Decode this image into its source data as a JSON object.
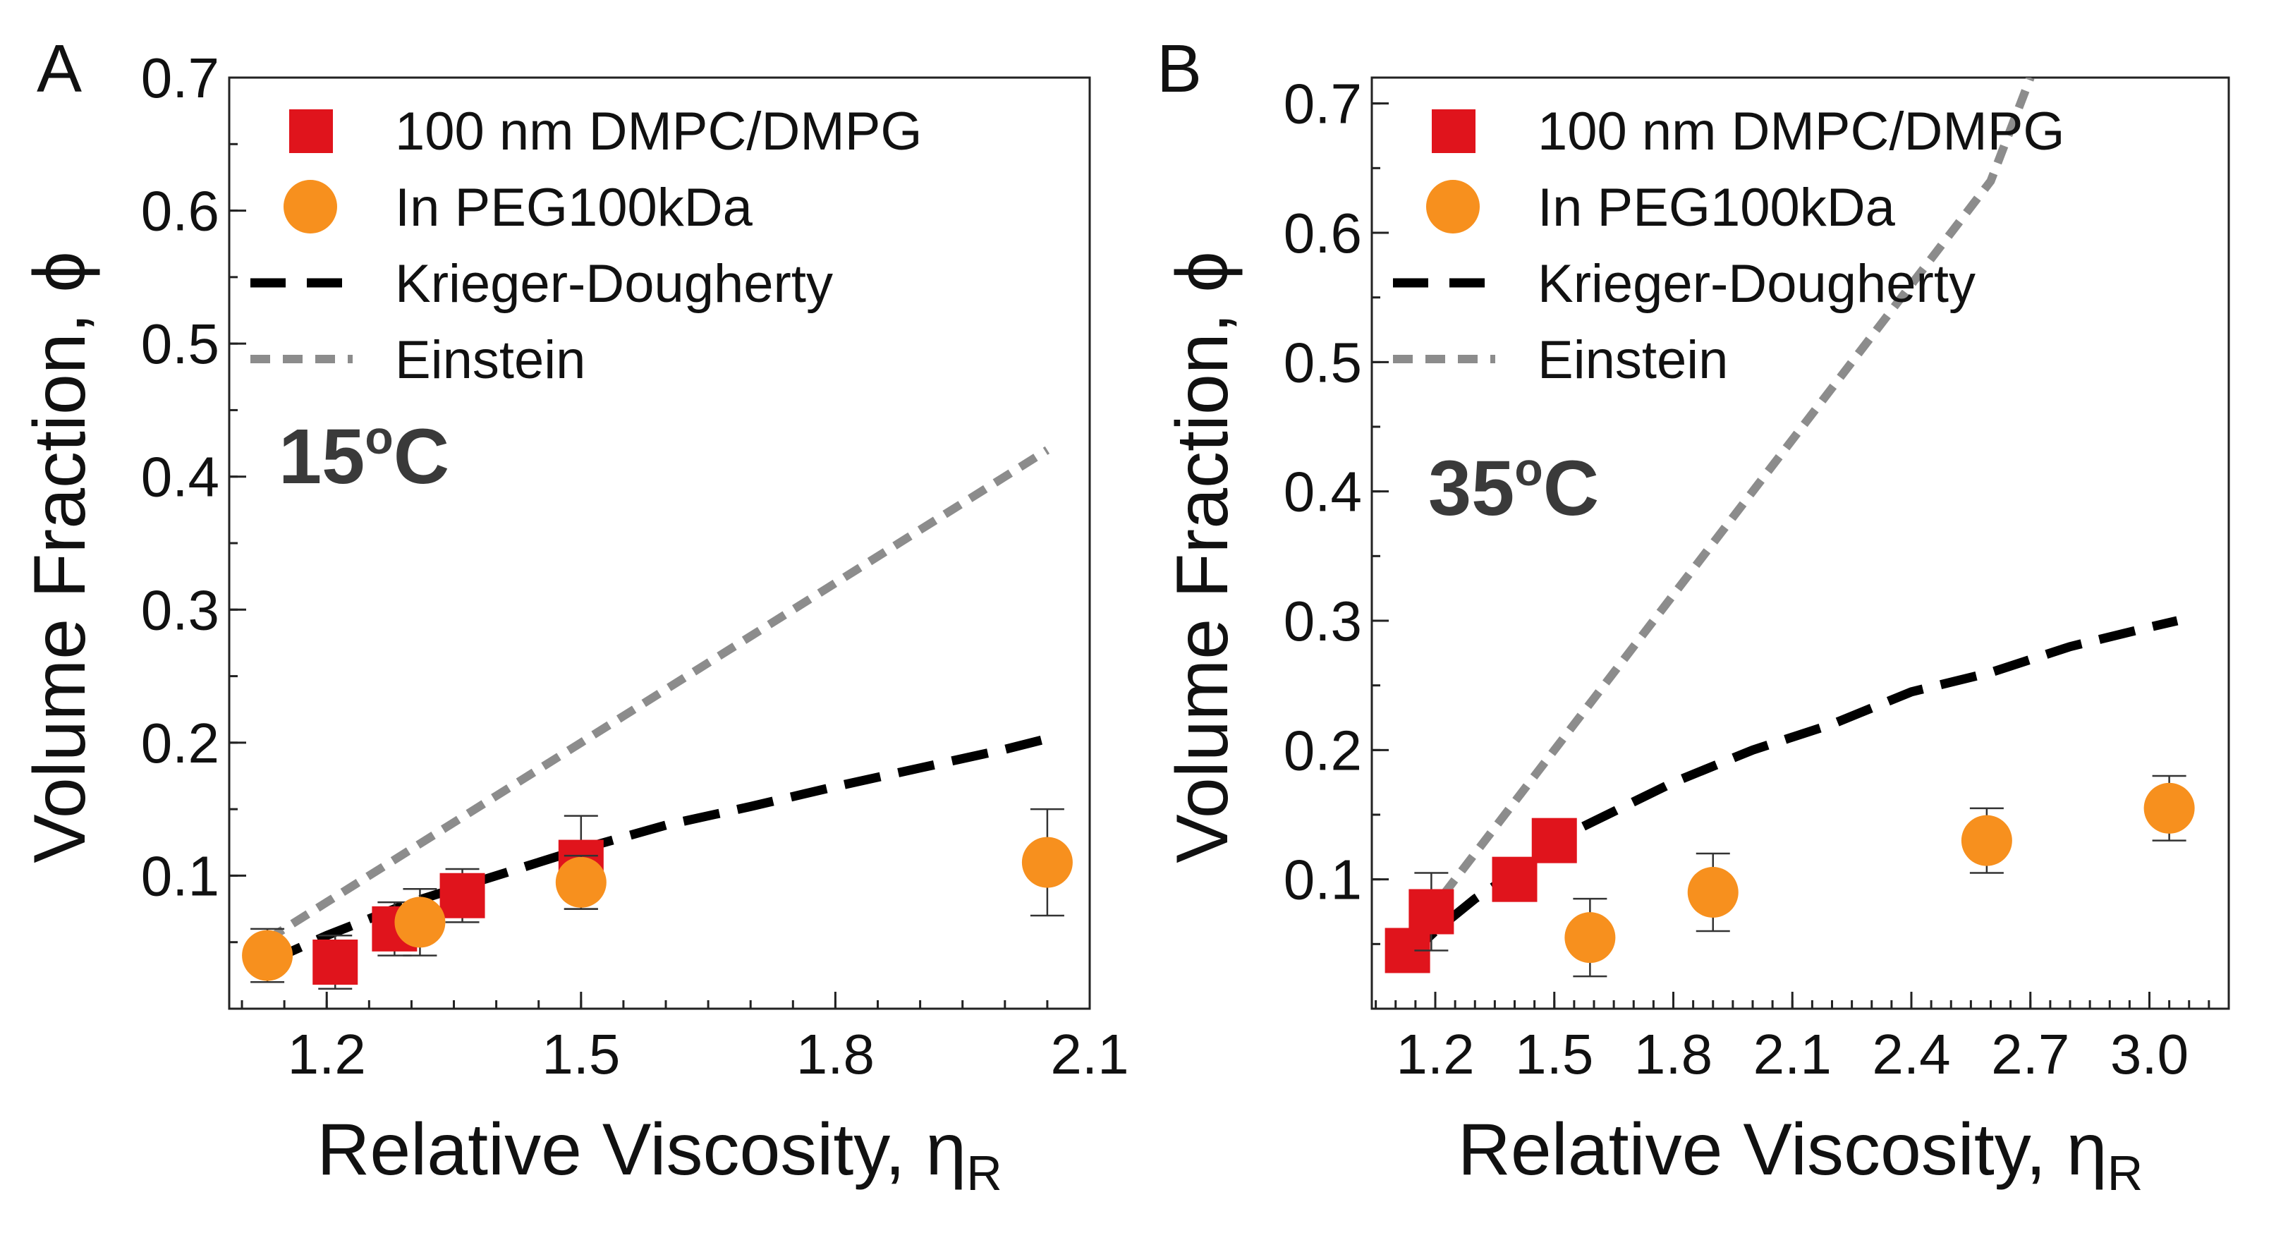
{
  "chart_data": [
    {
      "panel": "A",
      "type": "scatter",
      "annotation": "15",
      "annotation_sup": "o",
      "annotation_unit": "C",
      "xlabel": "Relative Viscosity, η",
      "xlabel_sub": "R",
      "ylabel": "Volume Fraction, ϕ",
      "xlim": [
        1.085,
        2.1
      ],
      "ylim": [
        0.0,
        0.7
      ],
      "xticks": [
        1.2,
        1.5,
        1.8,
        2.1
      ],
      "xtick_labels": [
        "1.2",
        "1.5",
        "1.8",
        "2.1"
      ],
      "yticks": [
        0.1,
        0.2,
        0.3,
        0.4,
        0.5,
        0.6,
        0.7
      ],
      "ytick_labels": [
        "0.1",
        "0.2",
        "0.3",
        "0.4",
        "0.5",
        "0.6",
        "0.7"
      ],
      "legend_position": "top-left",
      "series": [
        {
          "name": "100 nm DMPC/DMPG",
          "kind": "square",
          "color": "#e0141c",
          "points": [
            {
              "x": 1.21,
              "y": 0.035,
              "err": 0.02
            },
            {
              "x": 1.28,
              "y": 0.06,
              "err": 0.02
            },
            {
              "x": 1.36,
              "y": 0.085,
              "err": 0.02
            },
            {
              "x": 1.5,
              "y": 0.11,
              "err": 0.035
            }
          ]
        },
        {
          "name": "In PEG100kDa",
          "kind": "circle",
          "color": "#f7901e",
          "points": [
            {
              "x": 1.13,
              "y": 0.04,
              "err": 0.02
            },
            {
              "x": 1.31,
              "y": 0.065,
              "err": 0.025
            },
            {
              "x": 1.5,
              "y": 0.095,
              "err": 0.02
            },
            {
              "x": 2.05,
              "y": 0.11,
              "err": 0.04
            }
          ]
        },
        {
          "name": "Krieger-Dougherty",
          "kind": "dashed-line",
          "color": "#000000",
          "x": [
            1.13,
            1.2,
            1.3,
            1.4,
            1.5,
            1.6,
            1.7,
            1.8,
            1.9,
            2.0,
            2.05
          ],
          "y": [
            0.035,
            0.055,
            0.08,
            0.1,
            0.12,
            0.138,
            0.152,
            0.167,
            0.181,
            0.195,
            0.203
          ]
        },
        {
          "name": "Einstein",
          "kind": "dashed-line",
          "color": "#8c8c8c",
          "x": [
            1.13,
            1.2,
            1.3,
            1.4,
            1.5,
            1.6,
            1.7,
            1.8,
            1.9,
            2.0,
            2.05
          ],
          "y": [
            0.052,
            0.08,
            0.12,
            0.16,
            0.2,
            0.24,
            0.28,
            0.32,
            0.36,
            0.4,
            0.42
          ]
        }
      ]
    },
    {
      "panel": "B",
      "type": "scatter",
      "annotation": "35",
      "annotation_sup": "o",
      "annotation_unit": "C",
      "xlabel": "Relative Viscosity, η",
      "xlabel_sub": "R",
      "ylabel": "Volume Fraction, ϕ",
      "xlim": [
        1.04,
        3.2
      ],
      "ylim": [
        0.0,
        0.72
      ],
      "xticks": [
        1.2,
        1.5,
        1.8,
        2.1,
        2.4,
        2.7,
        3.0
      ],
      "xtick_labels": [
        "1.2",
        "1.5",
        "1.8",
        "2.1",
        "2.4",
        "2.7",
        "3.0"
      ],
      "yticks": [
        0.1,
        0.2,
        0.3,
        0.4,
        0.5,
        0.6,
        0.7
      ],
      "ytick_labels": [
        "0.1",
        "0.2",
        "0.3",
        "0.4",
        "0.5",
        "0.6",
        "0.7"
      ],
      "legend_position": "top-left",
      "series": [
        {
          "name": "100 nm DMPC/DMPG",
          "kind": "square",
          "color": "#e0141c",
          "points": [
            {
              "x": 1.13,
              "y": 0.045,
              "err": 0.015
            },
            {
              "x": 1.19,
              "y": 0.075,
              "err": 0.03
            },
            {
              "x": 1.4,
              "y": 0.1,
              "err": 0.015
            },
            {
              "x": 1.5,
              "y": 0.13,
              "err": 0.015
            }
          ]
        },
        {
          "name": "In PEG100kDa",
          "kind": "circle",
          "color": "#f7901e",
          "points": [
            {
              "x": 1.59,
              "y": 0.055,
              "err": 0.03
            },
            {
              "x": 1.9,
              "y": 0.09,
              "err": 0.03
            },
            {
              "x": 2.59,
              "y": 0.13,
              "err": 0.025
            },
            {
              "x": 3.05,
              "y": 0.155,
              "err": 0.025
            }
          ]
        },
        {
          "name": "Krieger-Dougherty",
          "kind": "dashed-line",
          "color": "#000000",
          "x": [
            1.13,
            1.2,
            1.3,
            1.4,
            1.5,
            1.6,
            1.8,
            2.0,
            2.2,
            2.4,
            2.6,
            2.8,
            3.0,
            3.07
          ],
          "y": [
            0.04,
            0.06,
            0.085,
            0.105,
            0.13,
            0.145,
            0.175,
            0.2,
            0.22,
            0.245,
            0.26,
            0.28,
            0.295,
            0.3
          ]
        },
        {
          "name": "Einstein",
          "kind": "dashed-line",
          "color": "#8c8c8c",
          "x": [
            1.13,
            1.2,
            1.3,
            1.4,
            1.5,
            1.6,
            1.8,
            2.0,
            2.2,
            2.4,
            2.6,
            2.7
          ],
          "y": [
            0.052,
            0.08,
            0.12,
            0.16,
            0.2,
            0.24,
            0.32,
            0.4,
            0.48,
            0.56,
            0.64,
            0.72
          ]
        }
      ]
    }
  ]
}
